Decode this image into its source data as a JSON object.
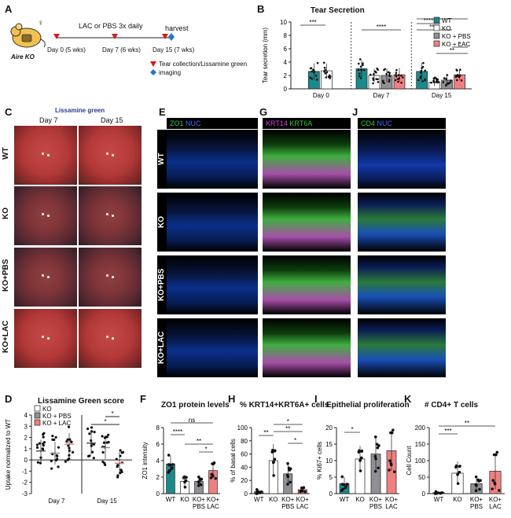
{
  "panels": {
    "A": {
      "letter": "A",
      "mouse_label": "Aire KO",
      "treatment": "LAC or PBS 3x daily",
      "harvest": "harvest",
      "days": [
        "Day 0 (5 wks)",
        "Day 7 (6 wks)",
        "Day 15 (7 wks)"
      ],
      "legend": [
        {
          "symbol": "red-triangle",
          "text": "Tear collection/Lissamine green"
        },
        {
          "symbol": "blue-diamond",
          "text": "imaging"
        }
      ]
    },
    "B": {
      "letter": "B",
      "title": "Tear Secretion"
    },
    "C": {
      "letter": "C",
      "title": "Lissamine green",
      "cols": [
        "Day 7",
        "Day 15"
      ],
      "rows": [
        "WT",
        "KO",
        "KO+PBS",
        "KO+LAC"
      ]
    },
    "D": {
      "letter": "D",
      "title": "Lissamine Green score"
    },
    "E": {
      "letter": "E",
      "stain1": "ZO1",
      "stain2": "NUC",
      "rows": [
        "WT",
        "KO",
        "KO+PBS",
        "KO+LAC"
      ]
    },
    "F": {
      "letter": "F",
      "title": "ZO1 protein levels"
    },
    "G": {
      "letter": "G",
      "stain1": "KRT14",
      "stain2": "KRT6A"
    },
    "H": {
      "letter": "H",
      "title": "% KRT14+KRT6A+ cells"
    },
    "I": {
      "letter": "I",
      "title": "Epithelial proliferation"
    },
    "J": {
      "letter": "J",
      "stain1": "CD4",
      "stain2": "NUC"
    },
    "K": {
      "letter": "K",
      "title": "# CD4+ T cells"
    }
  },
  "colors": {
    "wt": "#1b8a8a",
    "ko": "#ffffff",
    "pbs": "#8f8f94",
    "lac": "#f08080",
    "red": "#d7191c",
    "blue": "#1f78d1"
  },
  "chart_data": [
    {
      "id": "B",
      "type": "bar",
      "title": "Tear Secretion",
      "ylabel": "Tear secretion (mm)",
      "ylim": [
        0,
        10
      ],
      "yticks": [
        0,
        2,
        4,
        6,
        8,
        10
      ],
      "groups": [
        "Day 0",
        "Day 7",
        "Day 15"
      ],
      "legend_position": "top-right",
      "series": [
        {
          "name": "WT",
          "values": [
            2.6,
            3.0,
            2.6
          ],
          "err": [
            1.2,
            1.3,
            1.3
          ]
        },
        {
          "name": "KO",
          "values": [
            2.7,
            2.0,
            1.0
          ],
          "err": [
            1.1,
            1.0,
            0.6
          ]
        },
        {
          "name": "KO + PBS",
          "values": [
            null,
            2.0,
            1.3
          ],
          "err": [
            null,
            1.0,
            0.7
          ]
        },
        {
          "name": "KO + LAC",
          "values": [
            null,
            2.1,
            2.1
          ],
          "err": [
            null,
            1.0,
            0.8
          ]
        }
      ],
      "significance": [
        "***",
        "****",
        "****",
        "****",
        "*",
        "**",
        "*"
      ]
    },
    {
      "id": "D",
      "type": "scatter",
      "title": "Lissamine Green score",
      "ylabel": "Uptake normalized to WT",
      "ylim": [
        -3,
        4
      ],
      "yticks": [
        -3,
        -2,
        -1,
        0,
        1,
        2,
        3,
        4
      ],
      "groups": [
        "Day 7",
        "Day 15"
      ],
      "legend_position": "top-left",
      "series": [
        {
          "name": "KO",
          "values": [
            0.8,
            1.5
          ]
        },
        {
          "name": "KO + PBS",
          "values": [
            0.6,
            1.1
          ]
        },
        {
          "name": "KO + LAC",
          "values": [
            1.4,
            -0.3
          ]
        }
      ],
      "significance": [
        "*",
        "*"
      ]
    },
    {
      "id": "F",
      "type": "bar",
      "title": "ZO1 protein levels",
      "ylabel": "ZO1 intensity",
      "ylim": [
        0,
        8
      ],
      "yticks": [
        0,
        2,
        4,
        6,
        8
      ],
      "categories": [
        "WT",
        "KO",
        "KO+\nPBS",
        "KO+\nLAC"
      ],
      "values": [
        3.6,
        1.5,
        1.5,
        2.8
      ],
      "err": [
        1.0,
        0.8,
        0.5,
        0.9
      ],
      "significance": [
        "****",
        "**",
        "*",
        "ns"
      ]
    },
    {
      "id": "H",
      "type": "bar",
      "title": "% KRT14+KRT6A+ cells",
      "ylabel": "% of basal cells",
      "ylim": [
        0,
        100
      ],
      "yticks": [
        0,
        20,
        40,
        60,
        80,
        100
      ],
      "categories": [
        "WT",
        "KO",
        "KO+\nPBS",
        "KO+\nLAC"
      ],
      "values": [
        3,
        50,
        30,
        6
      ],
      "err": [
        3,
        25,
        15,
        3
      ],
      "significance": [
        "**",
        "*",
        "**",
        "*"
      ]
    },
    {
      "id": "I",
      "type": "bar",
      "title": "Epithelial proliferation",
      "ylabel": "% Ki67+ cells",
      "ylim": [
        0,
        20
      ],
      "yticks": [
        0,
        5,
        10,
        15,
        20
      ],
      "categories": [
        "WT",
        "KO",
        "KO+\nPBS",
        "KO+\nLAC"
      ],
      "values": [
        3,
        10.5,
        12,
        13
      ],
      "err": [
        2,
        4,
        5,
        6
      ],
      "significance": [
        "*"
      ]
    },
    {
      "id": "K",
      "type": "bar",
      "title": "# CD4+ T cells",
      "ylabel": "Cell Count",
      "ylim": [
        0,
        200
      ],
      "yticks": [
        0,
        50,
        100,
        150,
        200
      ],
      "categories": [
        "WT",
        "KO",
        "KO+\nPBS",
        "KO+\nLAC"
      ],
      "values": [
        3,
        62,
        30,
        68
      ],
      "err": [
        3,
        35,
        20,
        55
      ],
      "significance": [
        "***",
        "**"
      ]
    }
  ]
}
